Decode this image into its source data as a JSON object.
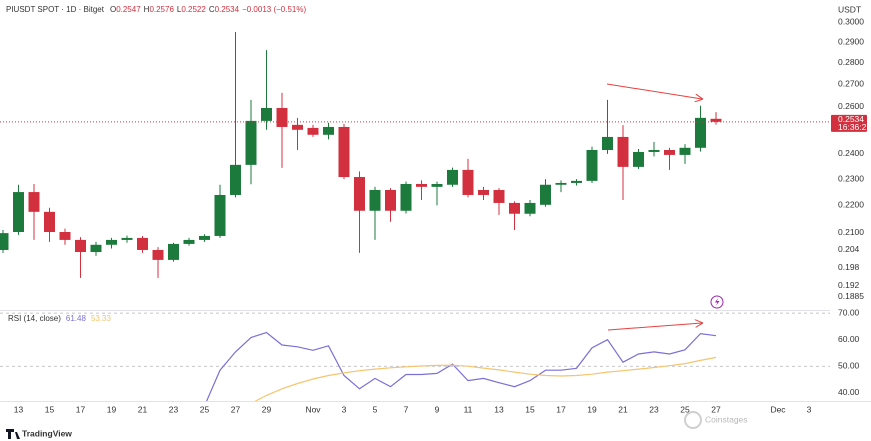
{
  "header": {
    "symbol": "PIUSDT SPOT · 1D · Bitget",
    "open_prefix": "O",
    "high_prefix": "H",
    "low_prefix": "L",
    "close_prefix": "C",
    "change": "−0.0013 (−0.51%)"
  },
  "currency": "USDT",
  "countdown": "16:36:21",
  "brand": "TradingView",
  "watermark": "Coinstages",
  "chart_data": [
    {
      "type": "candlestick",
      "categories": [
        null,
        "13",
        null,
        "15",
        null,
        "17",
        null,
        "19",
        null,
        "21",
        null,
        "23",
        null,
        "25",
        null,
        "27",
        null,
        "29",
        null,
        null,
        "Nov",
        null,
        "3",
        null,
        "5",
        null,
        "7",
        null,
        "9",
        null,
        "11",
        null,
        "13",
        null,
        "15",
        null,
        "17",
        null,
        "19",
        null,
        "21",
        null,
        "23",
        null,
        "25",
        null,
        "27",
        null,
        null,
        null,
        "Dec",
        null,
        "3"
      ],
      "open": [
        0.204,
        0.2103,
        0.225,
        0.2176,
        0.2103,
        0.2075,
        0.2033,
        0.2058,
        0.2075,
        0.2082,
        0.204,
        0.2006,
        0.2061,
        0.2075,
        0.2089,
        0.2239,
        0.2356,
        0.2538,
        0.2594,
        0.2521,
        0.2508,
        0.2479,
        0.2512,
        0.2308,
        0.218,
        0.2258,
        0.218,
        0.2281,
        0.227,
        0.2278,
        0.2336,
        0.2258,
        0.2258,
        0.2209,
        0.2169,
        0.2202,
        0.2278,
        0.2285,
        0.2293,
        0.2416,
        0.247,
        0.2348,
        0.2408,
        0.2416,
        0.2396,
        0.2425,
        0.2547,
        null,
        null,
        null,
        null,
        null,
        null
      ],
      "high": [
        0.211,
        0.2278,
        0.2281,
        0.2191,
        0.2115,
        0.2085,
        0.2068,
        0.2082,
        0.209,
        0.2089,
        0.205,
        0.2065,
        0.2082,
        0.2095,
        0.2278,
        0.295,
        0.263,
        0.2861,
        0.2661,
        0.2551,
        0.2521,
        0.253,
        0.2525,
        0.233,
        0.227,
        0.2265,
        0.229,
        0.2295,
        0.229,
        0.2345,
        0.238,
        0.227,
        0.2265,
        0.2215,
        0.222,
        0.23,
        0.2295,
        0.23,
        0.243,
        0.263,
        0.252,
        0.242,
        0.2449,
        0.2425,
        0.244,
        0.2604,
        0.2576,
        null,
        null,
        null,
        null,
        null,
        null
      ],
      "low": [
        0.203,
        0.2093,
        0.2075,
        0.2068,
        0.2058,
        0.1946,
        0.202,
        0.2045,
        0.2065,
        0.203,
        0.1946,
        0.2,
        0.2055,
        0.2068,
        0.2082,
        0.223,
        0.228,
        0.25,
        0.2344,
        0.2416,
        0.247,
        0.246,
        0.23,
        0.203,
        0.2075,
        0.214,
        0.217,
        0.222,
        0.22,
        0.227,
        0.223,
        0.222,
        0.2165,
        0.211,
        0.216,
        0.2195,
        0.225,
        0.2275,
        0.2285,
        0.24,
        0.222,
        0.234,
        0.239,
        0.2336,
        0.236,
        0.241,
        0.2522,
        null,
        null,
        null,
        null,
        null,
        null
      ],
      "close": [
        0.2099,
        0.225,
        0.2176,
        0.2103,
        0.2075,
        0.2033,
        0.2058,
        0.2075,
        0.2082,
        0.204,
        0.2006,
        0.2061,
        0.2075,
        0.2089,
        0.2239,
        0.2356,
        0.2538,
        0.2594,
        0.2512,
        0.25,
        0.2479,
        0.2512,
        0.2308,
        0.218,
        0.2258,
        0.218,
        0.2281,
        0.227,
        0.2281,
        0.2336,
        0.2239,
        0.2239,
        0.2209,
        0.2169,
        0.2209,
        0.2278,
        0.2285,
        0.2293,
        0.2416,
        0.247,
        0.2348,
        0.2408,
        0.2416,
        0.2396,
        0.2425,
        0.2551,
        0.2534,
        null,
        null,
        null,
        null,
        null,
        null
      ],
      "up_color": "#1c7a3c",
      "down_color": "#d3303f",
      "ylim": [
        0.1843,
        0.3114
      ],
      "log_scale": true,
      "yticks": [
        {
          "value": 0.3,
          "label": "0.3000"
        },
        {
          "value": 0.29,
          "label": "0.2900"
        },
        {
          "value": 0.28,
          "label": "0.2800"
        },
        {
          "value": 0.27,
          "label": "0.2700"
        },
        {
          "value": 0.26,
          "label": "0.2600"
        },
        {
          "value": 0.24,
          "label": "0.2400"
        },
        {
          "value": 0.23,
          "label": "0.2300"
        },
        {
          "value": 0.22,
          "label": "0.2200"
        },
        {
          "value": 0.21,
          "label": "0.2100"
        },
        0.204,
        0.198,
        0.192,
        0.1885
      ],
      "grid": false
    },
    {
      "type": "line",
      "title": "RSI (14, close)",
      "series": [
        {
          "color": "#7b6fd8",
          "values": [
            null,
            null,
            null,
            null,
            null,
            null,
            null,
            null,
            null,
            null,
            null,
            null,
            null,
            35,
            48.5,
            55.4,
            60.8,
            62.7,
            58,
            57.3,
            56,
            57.7,
            46.5,
            41.5,
            45.4,
            42.3,
            46.9,
            46.9,
            47.3,
            50.8,
            44.6,
            45.4,
            43.8,
            42.3,
            44.6,
            48.5,
            48.5,
            49.2,
            56.9,
            60,
            51.5,
            54.6,
            55.4,
            54.6,
            56.2,
            62.3,
            61.48,
            null,
            null,
            null,
            null,
            null,
            null
          ]
        },
        {
          "color": "#f5c46e",
          "values": [
            null,
            null,
            null,
            null,
            null,
            null,
            null,
            null,
            null,
            null,
            null,
            null,
            null,
            null,
            null,
            null,
            36,
            39,
            41.5,
            43.5,
            45.2,
            46.5,
            47.5,
            48.3,
            48.9,
            49.4,
            49.8,
            50.1,
            50.3,
            50.4,
            50,
            49.3,
            48.6,
            47.8,
            47,
            46.5,
            46.3,
            46.5,
            47,
            47.8,
            48.3,
            48.9,
            49.5,
            50.2,
            51,
            52.2,
            53.33,
            null,
            null,
            null,
            null,
            null,
            null
          ]
        }
      ],
      "ylim": [
        36.9,
        70.8
      ],
      "yticks": [
        {
          "value": 70,
          "label": "70.00"
        },
        {
          "value": 60,
          "label": "60.00"
        },
        {
          "value": 50,
          "label": "50.00"
        },
        {
          "value": 40,
          "label": "40.00"
        }
      ],
      "levels": [
        70,
        50
      ]
    }
  ]
}
